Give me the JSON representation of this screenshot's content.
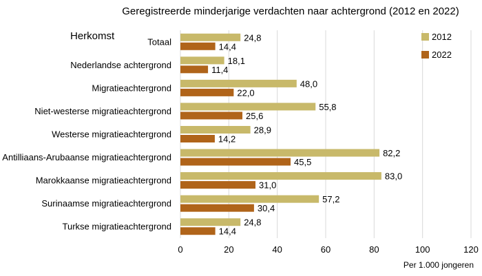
{
  "chart_data": {
    "type": "bar",
    "orientation": "horizontal",
    "title": "Geregistreerde minderjarige verdachten naar achtergrond (2012 en 2022)",
    "category_header": "Herkomst",
    "xlabel": "Per 1.000 jongeren",
    "categories": [
      "Totaal",
      "Nederlandse achtergrond",
      "Migratieachtergrond",
      "Niet-westerse migratieachtergrond",
      "Westerse migratieachtergrond",
      "Antilliaans-Arubaanse migratieachtergrond",
      "Marokkaanse migratieachtergrond",
      "Surinaamse migratieachtergrond",
      "Turkse migratieachtergrond"
    ],
    "series": [
      {
        "name": "2012",
        "color": "#c8b96a",
        "values": [
          24.8,
          18.1,
          48.0,
          55.8,
          28.9,
          82.2,
          83.0,
          57.2,
          24.8
        ],
        "labels": [
          "24,8",
          "18,1",
          "48,0",
          "55,8",
          "28,9",
          "82,2",
          "83,0",
          "57,2",
          "24,8"
        ]
      },
      {
        "name": "2022",
        "color": "#b0641a",
        "values": [
          14.4,
          11.4,
          22.0,
          25.6,
          14.2,
          45.5,
          31.0,
          30.4,
          14.4
        ],
        "labels": [
          "14,4",
          "11,4",
          "22,0",
          "25,6",
          "14,2",
          "45,5",
          "31,0",
          "30,4",
          "14,4"
        ]
      }
    ],
    "xlim": [
      0,
      120
    ],
    "xticks": [
      "0",
      "20",
      "40",
      "60",
      "80",
      "100",
      "120"
    ],
    "grid": true,
    "legend_position": "top-right"
  }
}
